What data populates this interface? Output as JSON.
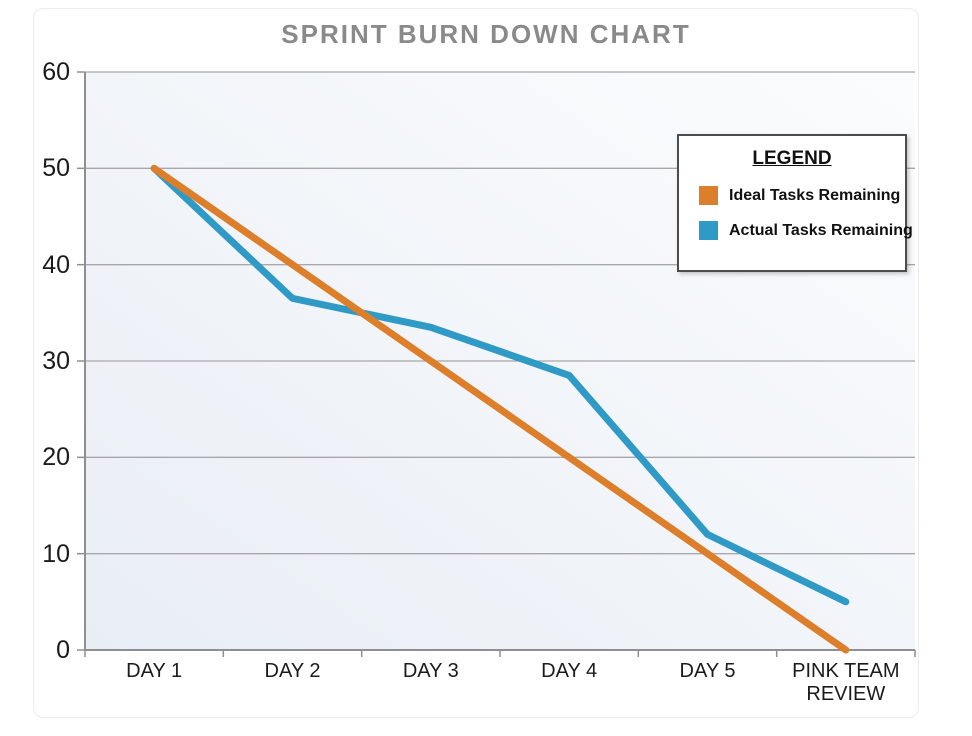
{
  "title": "SPRINT BURN DOWN CHART",
  "legend": {
    "title": "LEGEND",
    "items": [
      {
        "label": "Ideal Tasks Remaining",
        "color": "#dd7e2b"
      },
      {
        "label": "Actual Tasks Remaining",
        "color": "#2f9ac5"
      }
    ]
  },
  "chart_data": {
    "type": "line",
    "title": "SPRINT BURN DOWN CHART",
    "categories": [
      "DAY 1",
      "DAY 2",
      "DAY 3",
      "DAY 4",
      "DAY 5",
      "PINK TEAM REVIEW"
    ],
    "series": [
      {
        "name": "Ideal Tasks Remaining",
        "color": "#dd7e2b",
        "values": [
          50,
          40,
          30,
          20,
          10,
          0
        ]
      },
      {
        "name": "Actual Tasks Remaining",
        "color": "#2f9ac5",
        "values": [
          50,
          36.5,
          33.5,
          28.5,
          12,
          5
        ]
      }
    ],
    "xlabel": "",
    "ylabel": "",
    "ylim": [
      0,
      60
    ],
    "ytick_step": 10,
    "yticks": [
      0,
      10,
      20,
      30,
      40,
      50,
      60
    ],
    "grid": true,
    "legend_position": "top-right",
    "colors": {
      "grid": "#a8a8a8",
      "axis": "#8f8f8f",
      "tick_label": "#1b1b1b",
      "title": "#8a8a8a",
      "plot_bg_bottom_left": "#e9eef5",
      "plot_bg_top_right": "#fbfcfd"
    }
  }
}
